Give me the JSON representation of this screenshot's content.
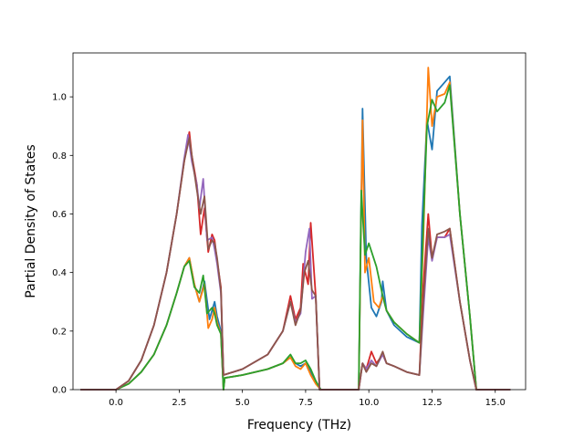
{
  "chart_data": {
    "type": "line",
    "title": "",
    "xlabel": "Frequency (THz)",
    "ylabel": "Partial Density of States",
    "xlim": [
      -1.7,
      16.2
    ],
    "ylim": [
      0.0,
      1.15
    ],
    "xticks": [
      0.0,
      2.5,
      5.0,
      7.5,
      10.0,
      12.5,
      15.0
    ],
    "xtick_labels": [
      "0.0",
      "2.5",
      "5.0",
      "7.5",
      "10.0",
      "12.5",
      "15.0"
    ],
    "yticks": [
      0.0,
      0.2,
      0.4,
      0.6,
      0.8,
      1.0
    ],
    "ytick_labels": [
      "0.0",
      "0.2",
      "0.4",
      "0.6",
      "0.8",
      "1.0"
    ],
    "grid": false,
    "legend": "none",
    "series": [
      {
        "color": "#1f77b4",
        "points": [
          [
            -1.4,
            0.0
          ],
          [
            0.0,
            0.0
          ],
          [
            0.5,
            0.02
          ],
          [
            1.0,
            0.06
          ],
          [
            1.5,
            0.12
          ],
          [
            2.0,
            0.22
          ],
          [
            2.4,
            0.33
          ],
          [
            2.7,
            0.42
          ],
          [
            2.9,
            0.45
          ],
          [
            3.1,
            0.36
          ],
          [
            3.3,
            0.3
          ],
          [
            3.5,
            0.37
          ],
          [
            3.7,
            0.24
          ],
          [
            3.8,
            0.27
          ],
          [
            3.9,
            0.3
          ],
          [
            4.0,
            0.25
          ],
          [
            4.15,
            0.2
          ],
          [
            4.25,
            0.0
          ],
          [
            4.3,
            0.04
          ],
          [
            5.0,
            0.05
          ],
          [
            6.0,
            0.07
          ],
          [
            6.6,
            0.09
          ],
          [
            6.9,
            0.11
          ],
          [
            7.1,
            0.09
          ],
          [
            7.3,
            0.08
          ],
          [
            7.5,
            0.09
          ],
          [
            7.7,
            0.06
          ],
          [
            7.9,
            0.03
          ],
          [
            8.1,
            0.0
          ],
          [
            9.6,
            0.0
          ],
          [
            9.75,
            0.96
          ],
          [
            9.9,
            0.45
          ],
          [
            10.1,
            0.28
          ],
          [
            10.3,
            0.25
          ],
          [
            10.5,
            0.3
          ],
          [
            10.55,
            0.37
          ],
          [
            10.7,
            0.27
          ],
          [
            11.0,
            0.22
          ],
          [
            11.5,
            0.18
          ],
          [
            12.0,
            0.16
          ],
          [
            12.1,
            0.56
          ],
          [
            12.3,
            0.92
          ],
          [
            12.5,
            0.82
          ],
          [
            12.7,
            1.02
          ],
          [
            12.9,
            1.04
          ],
          [
            13.2,
            1.07
          ],
          [
            13.6,
            0.6
          ],
          [
            14.0,
            0.25
          ],
          [
            14.25,
            0.0
          ],
          [
            15.6,
            0.0
          ]
        ]
      },
      {
        "color": "#ff7f0e",
        "points": [
          [
            -1.4,
            0.0
          ],
          [
            0.0,
            0.0
          ],
          [
            0.5,
            0.02
          ],
          [
            1.0,
            0.06
          ],
          [
            1.5,
            0.12
          ],
          [
            2.0,
            0.22
          ],
          [
            2.4,
            0.33
          ],
          [
            2.7,
            0.42
          ],
          [
            2.9,
            0.45
          ],
          [
            3.1,
            0.36
          ],
          [
            3.3,
            0.3
          ],
          [
            3.5,
            0.36
          ],
          [
            3.65,
            0.21
          ],
          [
            3.8,
            0.24
          ],
          [
            3.9,
            0.28
          ],
          [
            4.0,
            0.23
          ],
          [
            4.15,
            0.19
          ],
          [
            4.25,
            0.0
          ],
          [
            4.3,
            0.04
          ],
          [
            5.0,
            0.05
          ],
          [
            6.0,
            0.07
          ],
          [
            6.6,
            0.09
          ],
          [
            6.9,
            0.11
          ],
          [
            7.1,
            0.08
          ],
          [
            7.3,
            0.07
          ],
          [
            7.5,
            0.09
          ],
          [
            7.7,
            0.05
          ],
          [
            7.9,
            0.02
          ],
          [
            8.1,
            0.0
          ],
          [
            9.6,
            0.0
          ],
          [
            9.75,
            0.92
          ],
          [
            9.85,
            0.4
          ],
          [
            10.0,
            0.45
          ],
          [
            10.2,
            0.3
          ],
          [
            10.4,
            0.28
          ],
          [
            10.55,
            0.32
          ],
          [
            10.7,
            0.27
          ],
          [
            11.0,
            0.23
          ],
          [
            11.5,
            0.19
          ],
          [
            12.0,
            0.16
          ],
          [
            12.15,
            0.5
          ],
          [
            12.35,
            1.1
          ],
          [
            12.5,
            0.9
          ],
          [
            12.7,
            1.0
          ],
          [
            13.0,
            1.01
          ],
          [
            13.2,
            1.05
          ],
          [
            13.6,
            0.6
          ],
          [
            14.0,
            0.25
          ],
          [
            14.25,
            0.0
          ],
          [
            15.6,
            0.0
          ]
        ]
      },
      {
        "color": "#2ca02c",
        "points": [
          [
            -1.4,
            0.0
          ],
          [
            0.0,
            0.0
          ],
          [
            0.5,
            0.02
          ],
          [
            1.0,
            0.06
          ],
          [
            1.5,
            0.12
          ],
          [
            2.0,
            0.22
          ],
          [
            2.4,
            0.33
          ],
          [
            2.7,
            0.42
          ],
          [
            2.9,
            0.44
          ],
          [
            3.1,
            0.35
          ],
          [
            3.3,
            0.33
          ],
          [
            3.45,
            0.39
          ],
          [
            3.6,
            0.26
          ],
          [
            3.8,
            0.28
          ],
          [
            3.9,
            0.26
          ],
          [
            4.0,
            0.22
          ],
          [
            4.15,
            0.19
          ],
          [
            4.25,
            0.0
          ],
          [
            4.3,
            0.04
          ],
          [
            5.0,
            0.05
          ],
          [
            6.0,
            0.07
          ],
          [
            6.6,
            0.09
          ],
          [
            6.9,
            0.12
          ],
          [
            7.1,
            0.09
          ],
          [
            7.3,
            0.09
          ],
          [
            7.5,
            0.1
          ],
          [
            7.7,
            0.07
          ],
          [
            7.9,
            0.03
          ],
          [
            8.1,
            0.0
          ],
          [
            9.6,
            0.0
          ],
          [
            9.7,
            0.68
          ],
          [
            9.85,
            0.46
          ],
          [
            10.0,
            0.5
          ],
          [
            10.3,
            0.42
          ],
          [
            10.55,
            0.32
          ],
          [
            10.7,
            0.27
          ],
          [
            11.0,
            0.23
          ],
          [
            11.5,
            0.19
          ],
          [
            12.0,
            0.16
          ],
          [
            12.15,
            0.55
          ],
          [
            12.3,
            0.9
          ],
          [
            12.5,
            0.99
          ],
          [
            12.7,
            0.95
          ],
          [
            13.0,
            0.98
          ],
          [
            13.2,
            1.04
          ],
          [
            13.6,
            0.6
          ],
          [
            14.0,
            0.25
          ],
          [
            14.25,
            0.0
          ],
          [
            15.6,
            0.0
          ]
        ]
      },
      {
        "color": "#d62728",
        "points": [
          [
            -1.4,
            0.0
          ],
          [
            0.0,
            0.0
          ],
          [
            0.5,
            0.03
          ],
          [
            1.0,
            0.1
          ],
          [
            1.5,
            0.22
          ],
          [
            2.0,
            0.4
          ],
          [
            2.4,
            0.6
          ],
          [
            2.7,
            0.78
          ],
          [
            2.9,
            0.88
          ],
          [
            3.0,
            0.8
          ],
          [
            3.2,
            0.7
          ],
          [
            3.35,
            0.53
          ],
          [
            3.5,
            0.62
          ],
          [
            3.65,
            0.47
          ],
          [
            3.8,
            0.53
          ],
          [
            3.9,
            0.51
          ],
          [
            4.0,
            0.44
          ],
          [
            4.15,
            0.35
          ],
          [
            4.25,
            0.05
          ],
          [
            5.0,
            0.07
          ],
          [
            6.0,
            0.12
          ],
          [
            6.6,
            0.2
          ],
          [
            6.9,
            0.32
          ],
          [
            7.1,
            0.24
          ],
          [
            7.3,
            0.28
          ],
          [
            7.4,
            0.43
          ],
          [
            7.6,
            0.36
          ],
          [
            7.7,
            0.57
          ],
          [
            7.9,
            0.32
          ],
          [
            8.05,
            0.0
          ],
          [
            9.6,
            0.0
          ],
          [
            9.75,
            0.09
          ],
          [
            9.9,
            0.07
          ],
          [
            10.1,
            0.13
          ],
          [
            10.3,
            0.09
          ],
          [
            10.55,
            0.12
          ],
          [
            10.7,
            0.09
          ],
          [
            11.0,
            0.08
          ],
          [
            11.5,
            0.06
          ],
          [
            12.0,
            0.05
          ],
          [
            12.15,
            0.35
          ],
          [
            12.35,
            0.6
          ],
          [
            12.5,
            0.45
          ],
          [
            12.7,
            0.52
          ],
          [
            13.0,
            0.52
          ],
          [
            13.2,
            0.55
          ],
          [
            13.6,
            0.3
          ],
          [
            14.0,
            0.1
          ],
          [
            14.25,
            0.0
          ],
          [
            15.6,
            0.0
          ]
        ]
      },
      {
        "color": "#9467bd",
        "points": [
          [
            -1.4,
            0.0
          ],
          [
            0.0,
            0.0
          ],
          [
            0.5,
            0.03
          ],
          [
            1.0,
            0.1
          ],
          [
            1.5,
            0.22
          ],
          [
            2.0,
            0.4
          ],
          [
            2.4,
            0.6
          ],
          [
            2.7,
            0.79
          ],
          [
            2.85,
            0.87
          ],
          [
            3.0,
            0.78
          ],
          [
            3.2,
            0.7
          ],
          [
            3.3,
            0.62
          ],
          [
            3.45,
            0.72
          ],
          [
            3.6,
            0.51
          ],
          [
            3.8,
            0.52
          ],
          [
            3.9,
            0.48
          ],
          [
            4.0,
            0.43
          ],
          [
            4.15,
            0.33
          ],
          [
            4.25,
            0.05
          ],
          [
            5.0,
            0.07
          ],
          [
            6.0,
            0.12
          ],
          [
            6.6,
            0.2
          ],
          [
            6.9,
            0.3
          ],
          [
            7.1,
            0.23
          ],
          [
            7.3,
            0.26
          ],
          [
            7.5,
            0.47
          ],
          [
            7.65,
            0.55
          ],
          [
            7.75,
            0.31
          ],
          [
            7.9,
            0.32
          ],
          [
            8.05,
            0.0
          ],
          [
            9.6,
            0.0
          ],
          [
            9.75,
            0.09
          ],
          [
            9.9,
            0.07
          ],
          [
            10.1,
            0.1
          ],
          [
            10.3,
            0.08
          ],
          [
            10.55,
            0.12
          ],
          [
            10.7,
            0.09
          ],
          [
            11.0,
            0.08
          ],
          [
            11.5,
            0.06
          ],
          [
            12.0,
            0.05
          ],
          [
            12.15,
            0.26
          ],
          [
            12.35,
            0.52
          ],
          [
            12.5,
            0.44
          ],
          [
            12.7,
            0.52
          ],
          [
            13.0,
            0.52
          ],
          [
            13.2,
            0.53
          ],
          [
            13.6,
            0.3
          ],
          [
            14.0,
            0.1
          ],
          [
            14.25,
            0.0
          ],
          [
            15.6,
            0.0
          ]
        ]
      },
      {
        "color": "#8c564b",
        "points": [
          [
            -1.4,
            0.0
          ],
          [
            0.0,
            0.0
          ],
          [
            0.5,
            0.03
          ],
          [
            1.0,
            0.1
          ],
          [
            1.5,
            0.22
          ],
          [
            2.0,
            0.4
          ],
          [
            2.4,
            0.6
          ],
          [
            2.7,
            0.78
          ],
          [
            2.9,
            0.86
          ],
          [
            3.0,
            0.8
          ],
          [
            3.2,
            0.68
          ],
          [
            3.35,
            0.6
          ],
          [
            3.5,
            0.66
          ],
          [
            3.65,
            0.48
          ],
          [
            3.8,
            0.51
          ],
          [
            3.9,
            0.5
          ],
          [
            4.0,
            0.45
          ],
          [
            4.15,
            0.34
          ],
          [
            4.25,
            0.05
          ],
          [
            5.0,
            0.07
          ],
          [
            6.0,
            0.12
          ],
          [
            6.6,
            0.2
          ],
          [
            6.9,
            0.3
          ],
          [
            7.1,
            0.22
          ],
          [
            7.3,
            0.27
          ],
          [
            7.45,
            0.4
          ],
          [
            7.6,
            0.44
          ],
          [
            7.75,
            0.34
          ],
          [
            7.9,
            0.32
          ],
          [
            8.05,
            0.0
          ],
          [
            9.6,
            0.0
          ],
          [
            9.75,
            0.09
          ],
          [
            9.9,
            0.06
          ],
          [
            10.1,
            0.09
          ],
          [
            10.3,
            0.08
          ],
          [
            10.55,
            0.13
          ],
          [
            10.7,
            0.09
          ],
          [
            11.0,
            0.08
          ],
          [
            11.5,
            0.06
          ],
          [
            12.0,
            0.05
          ],
          [
            12.15,
            0.3
          ],
          [
            12.35,
            0.55
          ],
          [
            12.5,
            0.45
          ],
          [
            12.7,
            0.53
          ],
          [
            13.0,
            0.54
          ],
          [
            13.2,
            0.55
          ],
          [
            13.6,
            0.3
          ],
          [
            14.0,
            0.1
          ],
          [
            14.25,
            0.0
          ],
          [
            15.6,
            0.0
          ]
        ]
      }
    ]
  }
}
